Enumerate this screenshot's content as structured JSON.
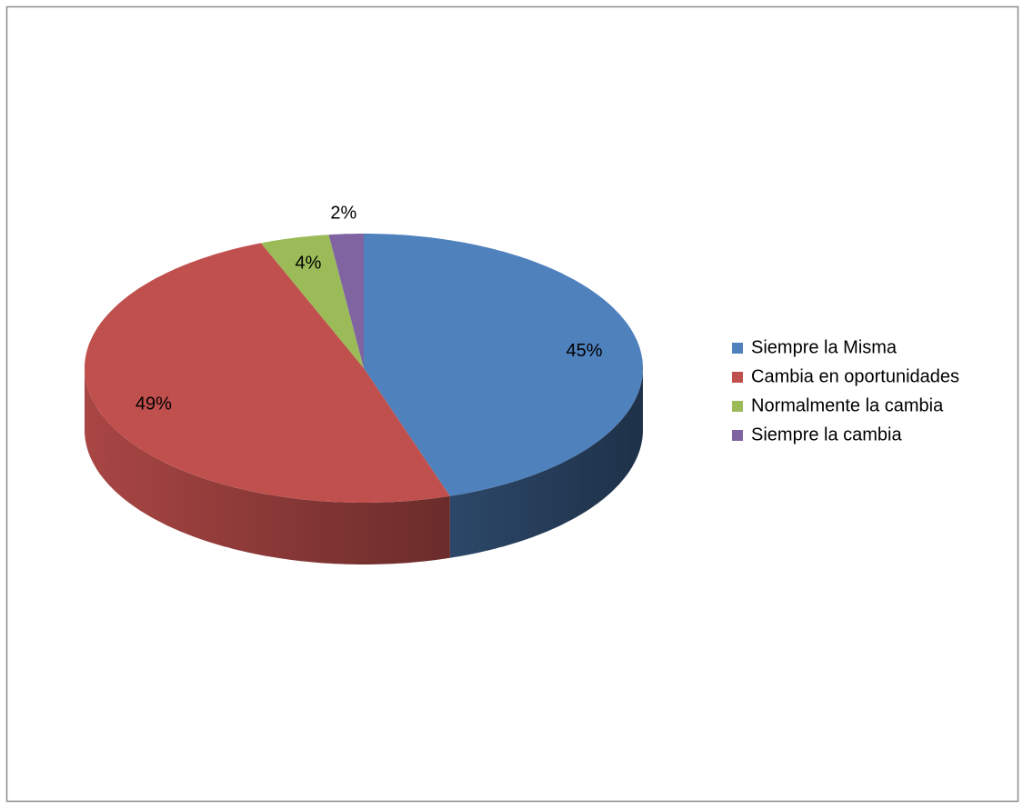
{
  "chart_data": {
    "type": "pie3d",
    "categories": [
      "Siempre la Misma",
      "Cambia en oportunidades",
      "Normalmente la cambia",
      "Siempre la cambia"
    ],
    "values": [
      45,
      49,
      4,
      2
    ],
    "value_labels": [
      "45%",
      "49%",
      "4%",
      "2%"
    ],
    "colors": [
      "#4f81bd",
      "#c0504d",
      "#9bbb59",
      "#8064a2"
    ],
    "legend": "right"
  }
}
